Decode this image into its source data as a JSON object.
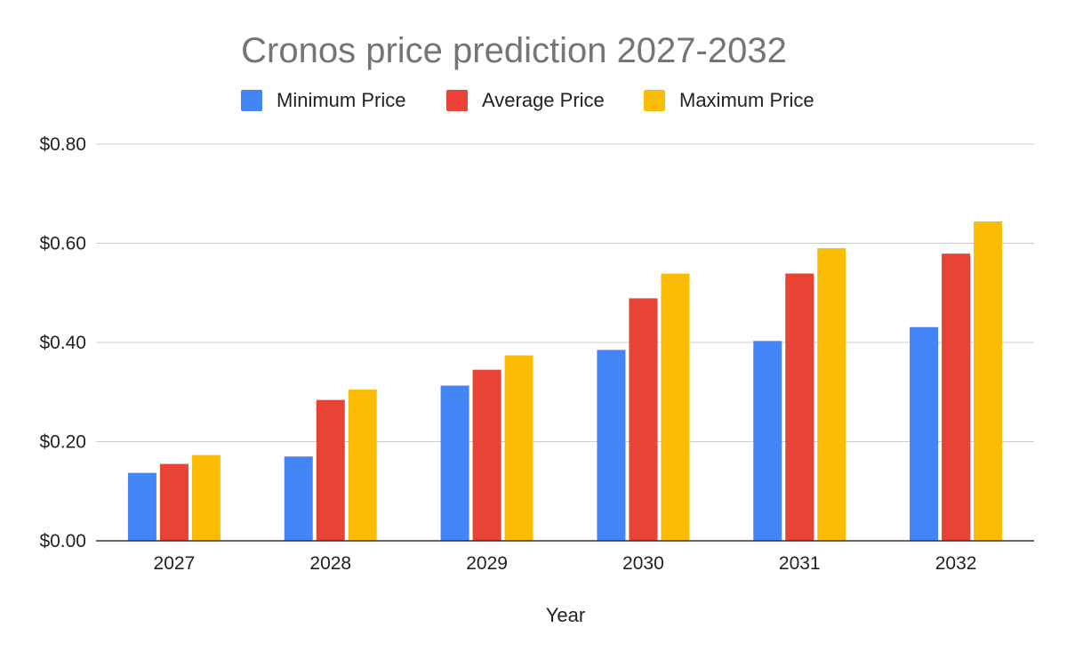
{
  "chart_data": {
    "type": "bar",
    "title": "Cronos price prediction 2027-2032",
    "xlabel": "Year",
    "ylabel": "",
    "categories": [
      "2027",
      "2028",
      "2029",
      "2030",
      "2031",
      "2032"
    ],
    "series": [
      {
        "name": "Minimum Price",
        "color": "#4285f4",
        "values": [
          0.137,
          0.17,
          0.313,
          0.385,
          0.403,
          0.431
        ]
      },
      {
        "name": "Average Price",
        "color": "#ea4335",
        "values": [
          0.155,
          0.284,
          0.345,
          0.489,
          0.539,
          0.579
        ]
      },
      {
        "name": "Maximum Price",
        "color": "#fbbc04",
        "values": [
          0.173,
          0.305,
          0.374,
          0.539,
          0.59,
          0.644
        ]
      }
    ],
    "ylim": [
      0,
      0.8
    ],
    "yticks": [
      0,
      0.2,
      0.4,
      0.6,
      0.8
    ],
    "ytick_labels": [
      "$0.00",
      "$0.20",
      "$0.40",
      "$0.60",
      "$0.80"
    ],
    "grid": true,
    "legend_position": "top"
  }
}
